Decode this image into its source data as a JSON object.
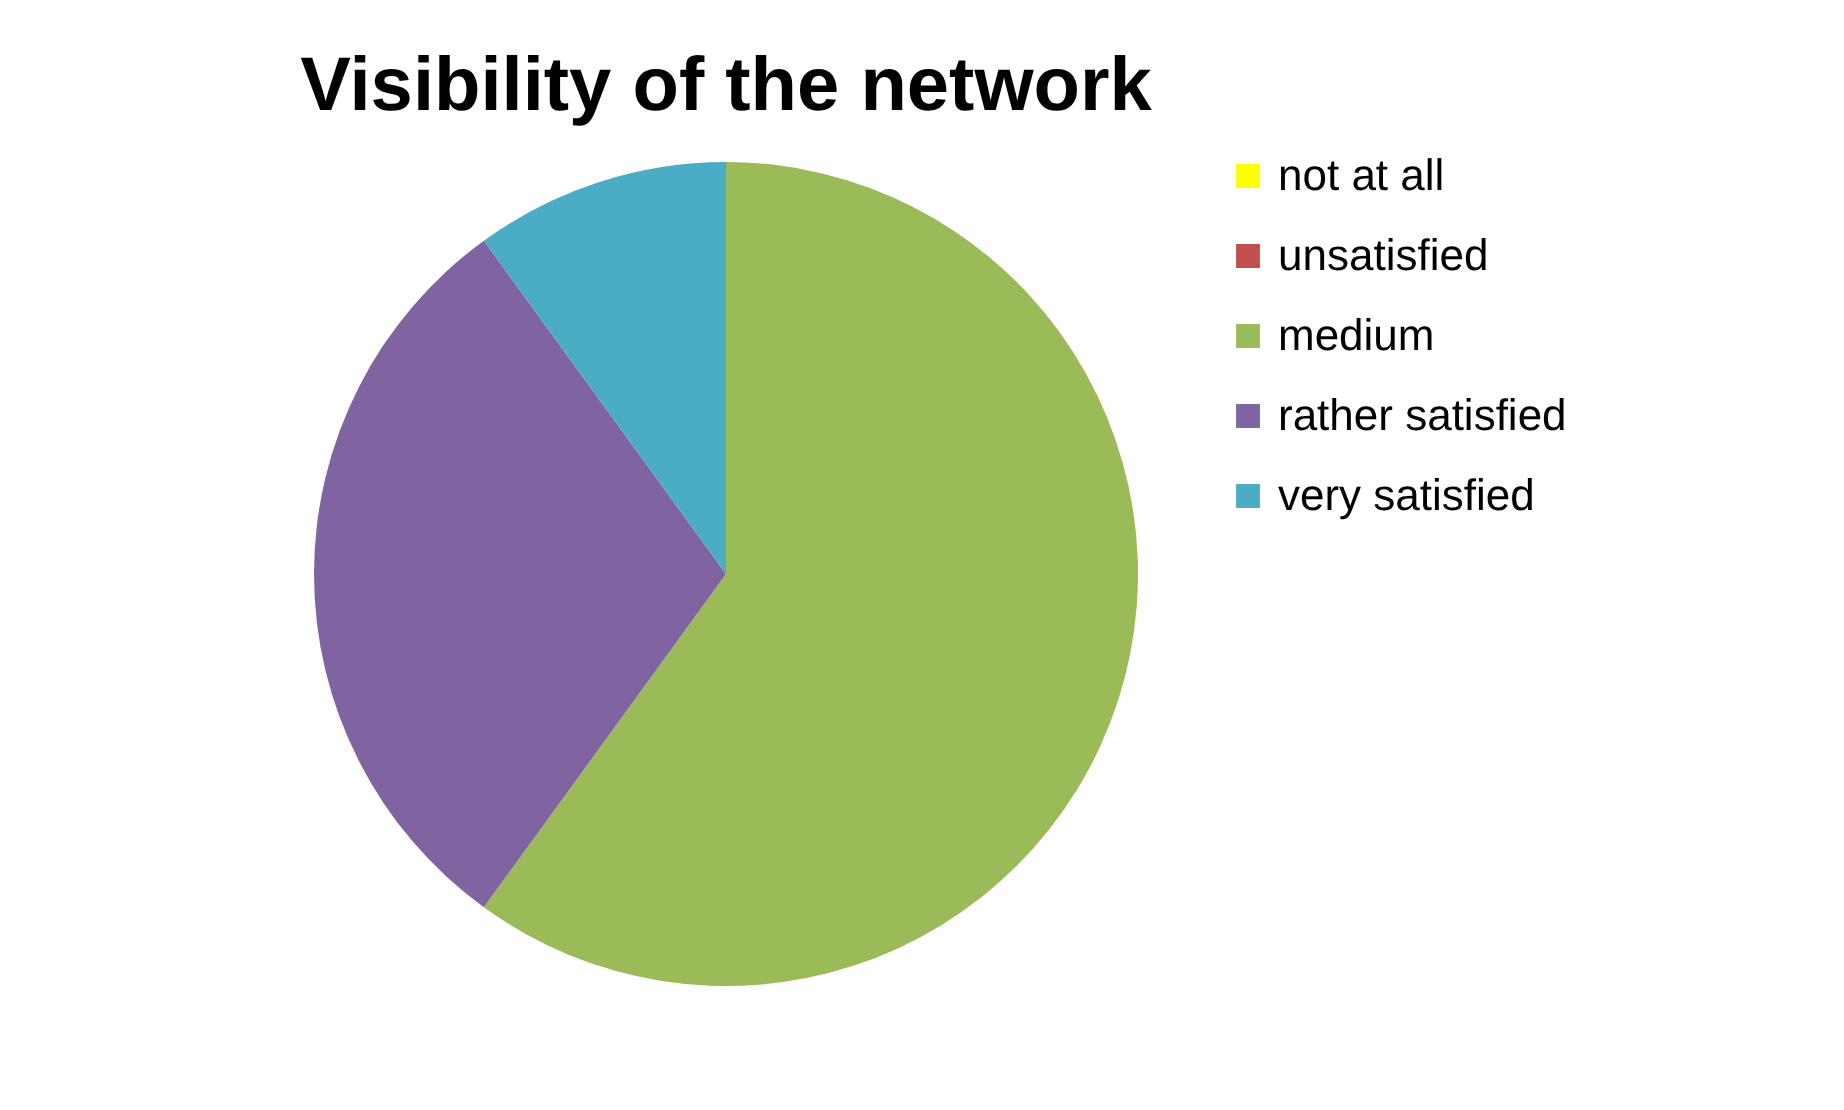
{
  "chart_data": {
    "type": "pie",
    "title": "Visibility of the network",
    "categories": [
      "not at all",
      "unsatisfied",
      "medium",
      "rather satisfied",
      "very satisfied"
    ],
    "values": [
      0,
      0,
      60,
      30,
      10
    ],
    "colors": [
      "#ffff00",
      "#c0504d",
      "#9bbb59",
      "#8064a2",
      "#4bacc6"
    ],
    "legend": "right"
  }
}
